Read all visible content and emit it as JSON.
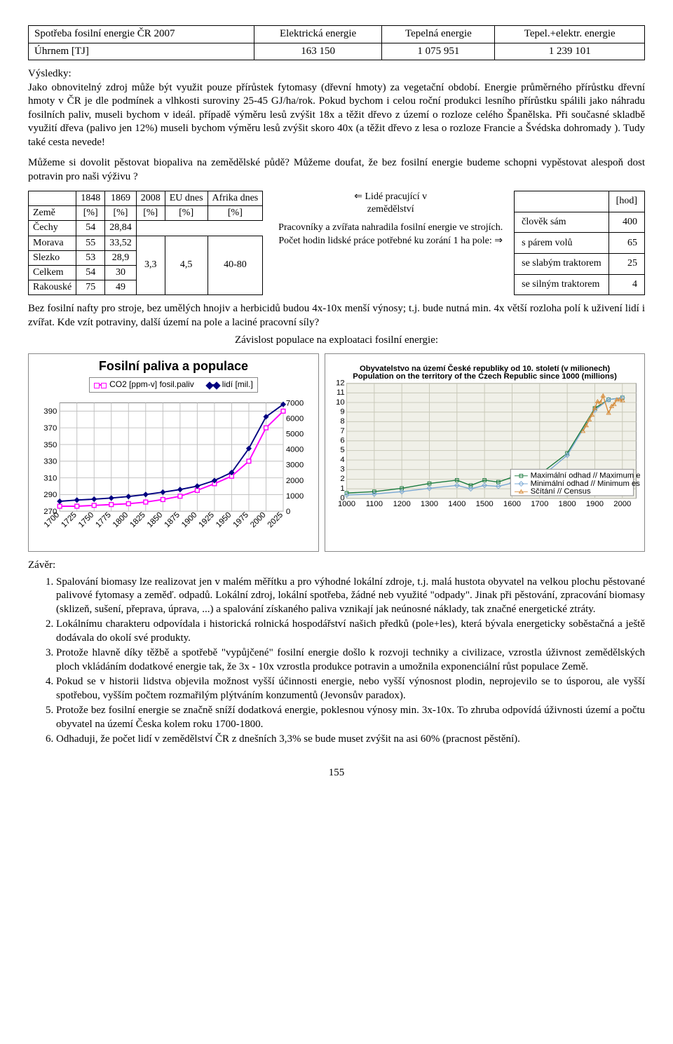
{
  "top_table": {
    "header": [
      "Spotřeba fosilní energie ČR 2007",
      "Elektrická energie",
      "Tepelná energie",
      "Tepel.+elektr. energie"
    ],
    "row": [
      "Úhrnem   [TJ]",
      "163 150",
      "1 075 951",
      "1 239 101"
    ]
  },
  "vysledky_title": "Výsledky:",
  "vysledky_para": "Jako obnovitelný zdroj může být využit pouze přírůstek fytomasy (dřevní hmoty) za vegetační období. Energie průměrného přírůstku dřevní hmoty v ČR je dle podmínek a vlhkosti suroviny 25-45 GJ/ha/rok. Pokud bychom i celou roční produkci lesního přírůstku spálili jako náhradu fosilních paliv, museli bychom v ideál. případě výměru lesů zvýšit 18x a těžit dřevo z území o rozloze celého Španělska. Při současné skladbě využití dřeva (palivo jen 12%) museli bychom výměru lesů zvýšit skoro 40x (a těžit dřevo z lesa o rozloze Francie a Švédska dohromady ).                                                    Tudy také cesta nevede!",
  "biopaliva_para": "Můžeme si dovolit pěstovat biopaliva na zemědělské půdě?  Můžeme doufat, že bez fosilní energie budeme schopni vypěstovat alespoň dost potravin pro naši výživu ?",
  "land_table": {
    "header": [
      "",
      "1848",
      "1869",
      "2008",
      "EU dnes",
      "Afrika dnes"
    ],
    "unit": [
      "Země",
      "[%]",
      "[%]",
      "[%]",
      "[%]",
      "[%]"
    ],
    "rows": [
      [
        "Čechy",
        "54",
        "28,84",
        "",
        "",
        ""
      ],
      [
        "Morava",
        "55",
        "33,52",
        "3,3",
        "4,5",
        "40-80"
      ],
      [
        "Slezko",
        "53",
        "28,9",
        "",
        "",
        ""
      ],
      [
        "Celkem",
        "54",
        "30",
        "",
        "",
        ""
      ],
      [
        "Rakouské",
        "75",
        "49",
        "",
        "",
        ""
      ]
    ]
  },
  "people_text": {
    "l1": "⇐ Lidé pracující v",
    "l2": "zemědělství",
    "l3": "Pracovníky a zvířata nahradila fosilní energie ve strojích. Počet hodin lidské práce potřebné ku zorání 1 ha pole:  ⇒"
  },
  "plow_table": {
    "head": [
      "",
      "[hod]"
    ],
    "rows": [
      [
        "člověk sám",
        "400"
      ],
      [
        "s párem volů",
        "65"
      ],
      [
        "se slabým traktorem",
        "25"
      ],
      [
        "se silným traktorem",
        "4"
      ]
    ]
  },
  "nafta_para": "Bez fosilní nafty pro stroje, bez umělých hnojiv a herbicidů budou 4x-10x menší výnosy;  t.j. bude nutná min. 4x větší rozloha polí k uživení lidí i zvířat. Kde vzít potraviny, další území na pole a laciné pracovní síly?",
  "dep_title": "Závislost populace na exploataci fosilní energie:",
  "chart1": {
    "title": "Fosilní paliva a populace",
    "legend": [
      "CO2 [ppm-v] fosil.paliv",
      "lidí [mil.]"
    ],
    "colors": {
      "co2": "#ff00ff",
      "pop": "#000080",
      "grid": "#c0c0c0",
      "axis": "#808080"
    },
    "yleft_ticks": [
      "270",
      "290",
      "310",
      "330",
      "350",
      "370",
      "390"
    ],
    "yleft_lim": [
      270,
      400
    ],
    "yright_ticks": [
      "0",
      "1000",
      "2000",
      "3000",
      "4000",
      "5000",
      "6000",
      "7000"
    ],
    "yright_lim": [
      0,
      7000
    ],
    "x_ticks": [
      "1700",
      "1725",
      "1750",
      "1775",
      "1800",
      "1825",
      "1850",
      "1875",
      "1900",
      "1925",
      "1950",
      "1975",
      "2000",
      "2025"
    ],
    "x_lim": [
      1700,
      2025
    ],
    "co2": [
      276,
      276,
      277,
      278,
      279,
      281,
      284,
      288,
      295,
      303,
      312,
      330,
      370,
      390
    ],
    "pop": [
      640,
      720,
      780,
      850,
      950,
      1080,
      1230,
      1400,
      1620,
      1980,
      2500,
      4050,
      6100,
      6900
    ]
  },
  "chart2": {
    "title": "Obyvatelstvo na území České republiky od 10. století (v milionech)\nPopulation on the territory of the Czech Republic since 1000 (millions)",
    "x_ticks": [
      "1000",
      "1100",
      "1200",
      "1300",
      "1400",
      "1500",
      "1600",
      "1700",
      "1800",
      "1900",
      "2000"
    ],
    "x_lim": [
      1000,
      2050
    ],
    "y_ticks": [
      "0",
      "1",
      "2",
      "3",
      "4",
      "5",
      "6",
      "7",
      "8",
      "9",
      "10",
      "11",
      "12"
    ],
    "y_lim": [
      0,
      12
    ],
    "colors": {
      "max": "#1a7a3e",
      "min": "#7aa8d4",
      "census": "#d68c3a",
      "bg": "#f0f0e8",
      "grid": "#c8c8b8"
    },
    "legend": [
      "Maximální odhad // Maximum estimate",
      "Minimální odhad // Minimum estimate",
      "Sčítání // Census"
    ],
    "max": [
      0.55,
      0.7,
      1.05,
      1.55,
      1.9,
      1.35,
      1.9,
      1.7,
      2.2,
      1.5,
      2.5,
      4.7,
      9.4,
      10.3,
      10.5
    ],
    "min": [
      0.35,
      0.45,
      0.7,
      1.05,
      1.35,
      1.0,
      1.35,
      1.25,
      1.6,
      1.2,
      2.1,
      4.5,
      9.2,
      10.3,
      10.5
    ],
    "census_x": [
      1857,
      1869,
      1880,
      1890,
      1900,
      1910,
      1921,
      1930,
      1950,
      1961,
      1970,
      1980,
      1991,
      2001
    ],
    "census_y": [
      7.0,
      7.6,
      8.2,
      8.7,
      9.4,
      10.1,
      10.0,
      10.7,
      8.9,
      9.6,
      9.8,
      10.3,
      10.3,
      10.2
    ],
    "x_series": [
      1000,
      1100,
      1200,
      1300,
      1400,
      1450,
      1500,
      1550,
      1600,
      1650,
      1700,
      1800,
      1900,
      1950,
      2000
    ]
  },
  "zaver_title": "Závěr:",
  "zaver_items": [
    "Spalování biomasy lze realizovat jen v malém měřítku a pro výhodné lokální zdroje, t.j. malá hustota obyvatel na velkou plochu pěstované palivové fytomasy a zeměď. odpadů. Lokální zdroj, lokální spotřeba,  žádné neb využité \"odpady\". Jinak při pěstování, zpracování biomasy (sklizeň, sušení, přeprava, úprava, ...) a spalování získaného paliva vznikají jak neúnosné náklady, tak značné energetické ztráty.",
    " Lokálnímu charakteru odpovídala i historická rolnická hospodářství našich předků (pole+les), která bývala energeticky soběstačná a ještě dodávala do okolí své produkty.",
    "Protože hlavně díky těžbě a spotřebě \"vypůjčené\" fosilní energie došlo k rozvoji techniky a civilizace, vzrostla úživnost zemědělských ploch vkládáním dodatkové energie tak, že 3x - 10x vzrostla produkce potravin a umožnila exponenciální růst populace Země.",
    "Pokud se v historii lidstva objevila možnost vyšší účinnosti energie, nebo vyšší výnosnost plodin, neprojevilo se to úsporou, ale vyšší spotřebou, vyšším počtem rozmařilým plýtváním konzumentů (Jevonsův paradox).",
    "Protože bez fosilní energie se značně sníží dodatková energie, poklesnou výnosy min. 3x-10x. To zhruba odpovídá úživnosti území a počtu obyvatel na území Česka kolem roku 1700-1800.",
    "Odhaduji, že počet lidí v zemědělství ČR z dnešních 3,3% se bude muset zvýšit na asi 60% (pracnost pěstění)."
  ],
  "page_number": "155"
}
